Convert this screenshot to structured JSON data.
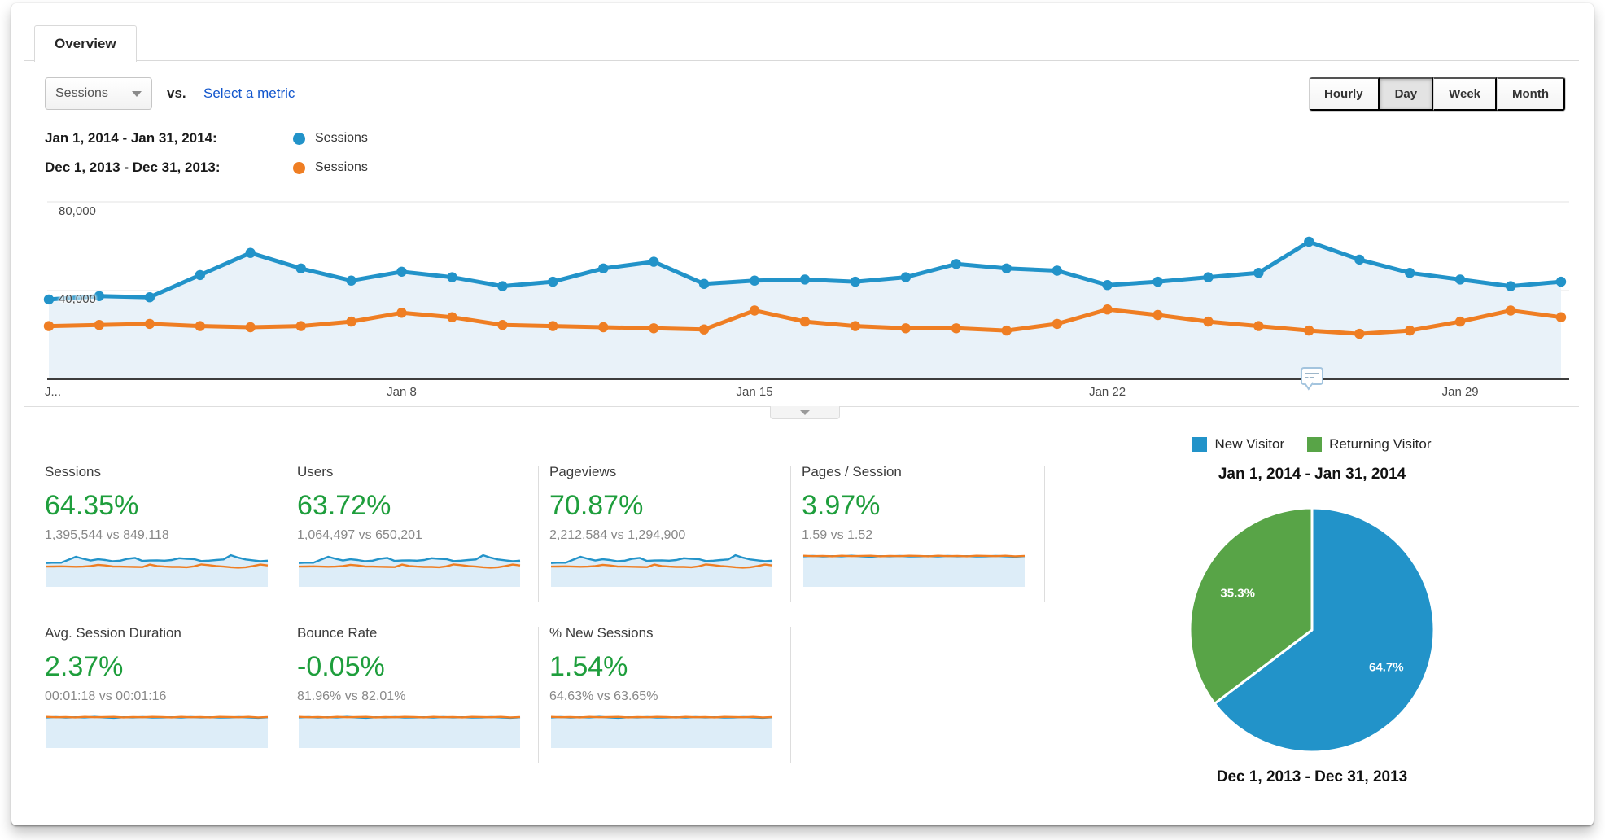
{
  "header": {
    "tab_label": "Overview"
  },
  "controls": {
    "metric_selector_value": "Sessions",
    "vs_label": "vs.",
    "select_metric_link": "Select a metric",
    "granularity": [
      {
        "label": "Hourly",
        "active": false
      },
      {
        "label": "Day",
        "active": true
      },
      {
        "label": "Week",
        "active": false
      },
      {
        "label": "Month",
        "active": false
      }
    ]
  },
  "legend_rows": [
    {
      "date_range": "Jan 1, 2014 - Jan 31, 2014:",
      "series_label": "Sessions",
      "color": "#2293c9"
    },
    {
      "date_range": "Dec 1, 2013 - Dec 31, 2013:",
      "series_label": "Sessions",
      "color": "#ef7e23"
    }
  ],
  "chart_data": [
    {
      "id": "sessions-over-time",
      "type": "line",
      "title": "Sessions comparison by day",
      "ylim": [
        0,
        80000
      ],
      "grid": true,
      "area_fill": true,
      "y_ticks": [
        {
          "value": 80000,
          "label": "80,000"
        },
        {
          "value": 40000,
          "label": "40,000"
        }
      ],
      "x_ticks": [
        {
          "day": 1,
          "label": "J..."
        },
        {
          "day": 8,
          "label": "Jan 8"
        },
        {
          "day": 15,
          "label": "Jan 15"
        },
        {
          "day": 22,
          "label": "Jan 22"
        },
        {
          "day": 29,
          "label": "Jan 29"
        }
      ],
      "series": [
        {
          "name": "Sessions (Jan 1, 2014 - Jan 31, 2014)",
          "color": "#2293c9",
          "values": [
            36000,
            37500,
            37000,
            47000,
            57000,
            50000,
            44500,
            48500,
            46000,
            42000,
            44000,
            50000,
            53000,
            43000,
            44500,
            45000,
            44000,
            46000,
            52000,
            50000,
            49000,
            42500,
            44000,
            46000,
            48000,
            62000,
            54000,
            48000,
            45000,
            42000,
            44000
          ]
        },
        {
          "name": "Sessions (Dec 1, 2013 - Dec 31, 2013)",
          "color": "#ef7e23",
          "values": [
            24000,
            24500,
            25000,
            24000,
            23500,
            24000,
            26000,
            30000,
            28000,
            24500,
            24000,
            23500,
            23000,
            22500,
            31000,
            26000,
            24000,
            23000,
            23000,
            22000,
            25000,
            31500,
            29000,
            26000,
            24000,
            22000,
            20500,
            22000,
            26000,
            31000,
            28000
          ]
        }
      ]
    },
    {
      "id": "visitor-type-pie",
      "type": "pie",
      "title": "Jan 1, 2014 - Jan 31, 2014",
      "slices": [
        {
          "label": "New Visitor",
          "value": 64.7,
          "display": "64.7%",
          "color": "#2293c9"
        },
        {
          "label": "Returning Visitor",
          "value": 35.3,
          "display": "35.3%",
          "color": "#58a447"
        }
      ]
    }
  ],
  "sparklines": {
    "flat": {
      "blue": [
        0.9,
        0.92,
        0.89,
        0.91,
        0.9,
        0.93,
        0.9,
        0.88,
        0.91,
        0.9,
        0.92,
        0.89,
        0.9,
        0.91,
        0.89,
        0.92,
        0.9,
        0.91,
        0.89,
        0.9,
        0.92,
        0.9,
        0.88,
        0.91
      ],
      "orange": [
        0.93,
        0.91,
        0.92,
        0.9,
        0.93,
        0.91,
        0.92,
        0.93,
        0.9,
        0.92,
        0.91,
        0.93,
        0.92,
        0.9,
        0.93,
        0.91,
        0.92,
        0.9,
        0.93,
        0.92,
        0.91,
        0.93,
        0.9,
        0.92
      ]
    }
  },
  "scorecards": [
    {
      "title": "Sessions",
      "change": "64.35%",
      "comparison": "1,395,544 vs 849,118",
      "spark": "wavy"
    },
    {
      "title": "Users",
      "change": "63.72%",
      "comparison": "1,064,497 vs 650,201",
      "spark": "wavy"
    },
    {
      "title": "Pageviews",
      "change": "70.87%",
      "comparison": "2,212,584 vs 1,294,900",
      "spark": "wavy"
    },
    {
      "title": "Pages / Session",
      "change": "3.97%",
      "comparison": "1.59 vs 1.52",
      "spark": "flat"
    },
    {
      "title": "Avg. Session Duration",
      "change": "2.37%",
      "comparison": "00:01:18 vs 00:01:16",
      "spark": "flat"
    },
    {
      "title": "Bounce Rate",
      "change": "-0.05%",
      "comparison": "81.96% vs 82.01%",
      "spark": "flat"
    },
    {
      "title": "% New Sessions",
      "change": "1.54%",
      "comparison": "64.63% vs 63.65%",
      "spark": "flat"
    }
  ],
  "pie_section": {
    "title_top": "Jan 1, 2014 - Jan 31, 2014",
    "title_bottom": "Dec 1, 2013 - Dec 31, 2013"
  },
  "colors": {
    "chart_blue": "#2293c9",
    "chart_orange": "#ef7e23",
    "positive_green": "#1e9e3c",
    "pie_green": "#58a447",
    "link_blue": "#1155cc",
    "area_fill": "#e9f2f9",
    "spark_fill": "#ddedf8"
  }
}
